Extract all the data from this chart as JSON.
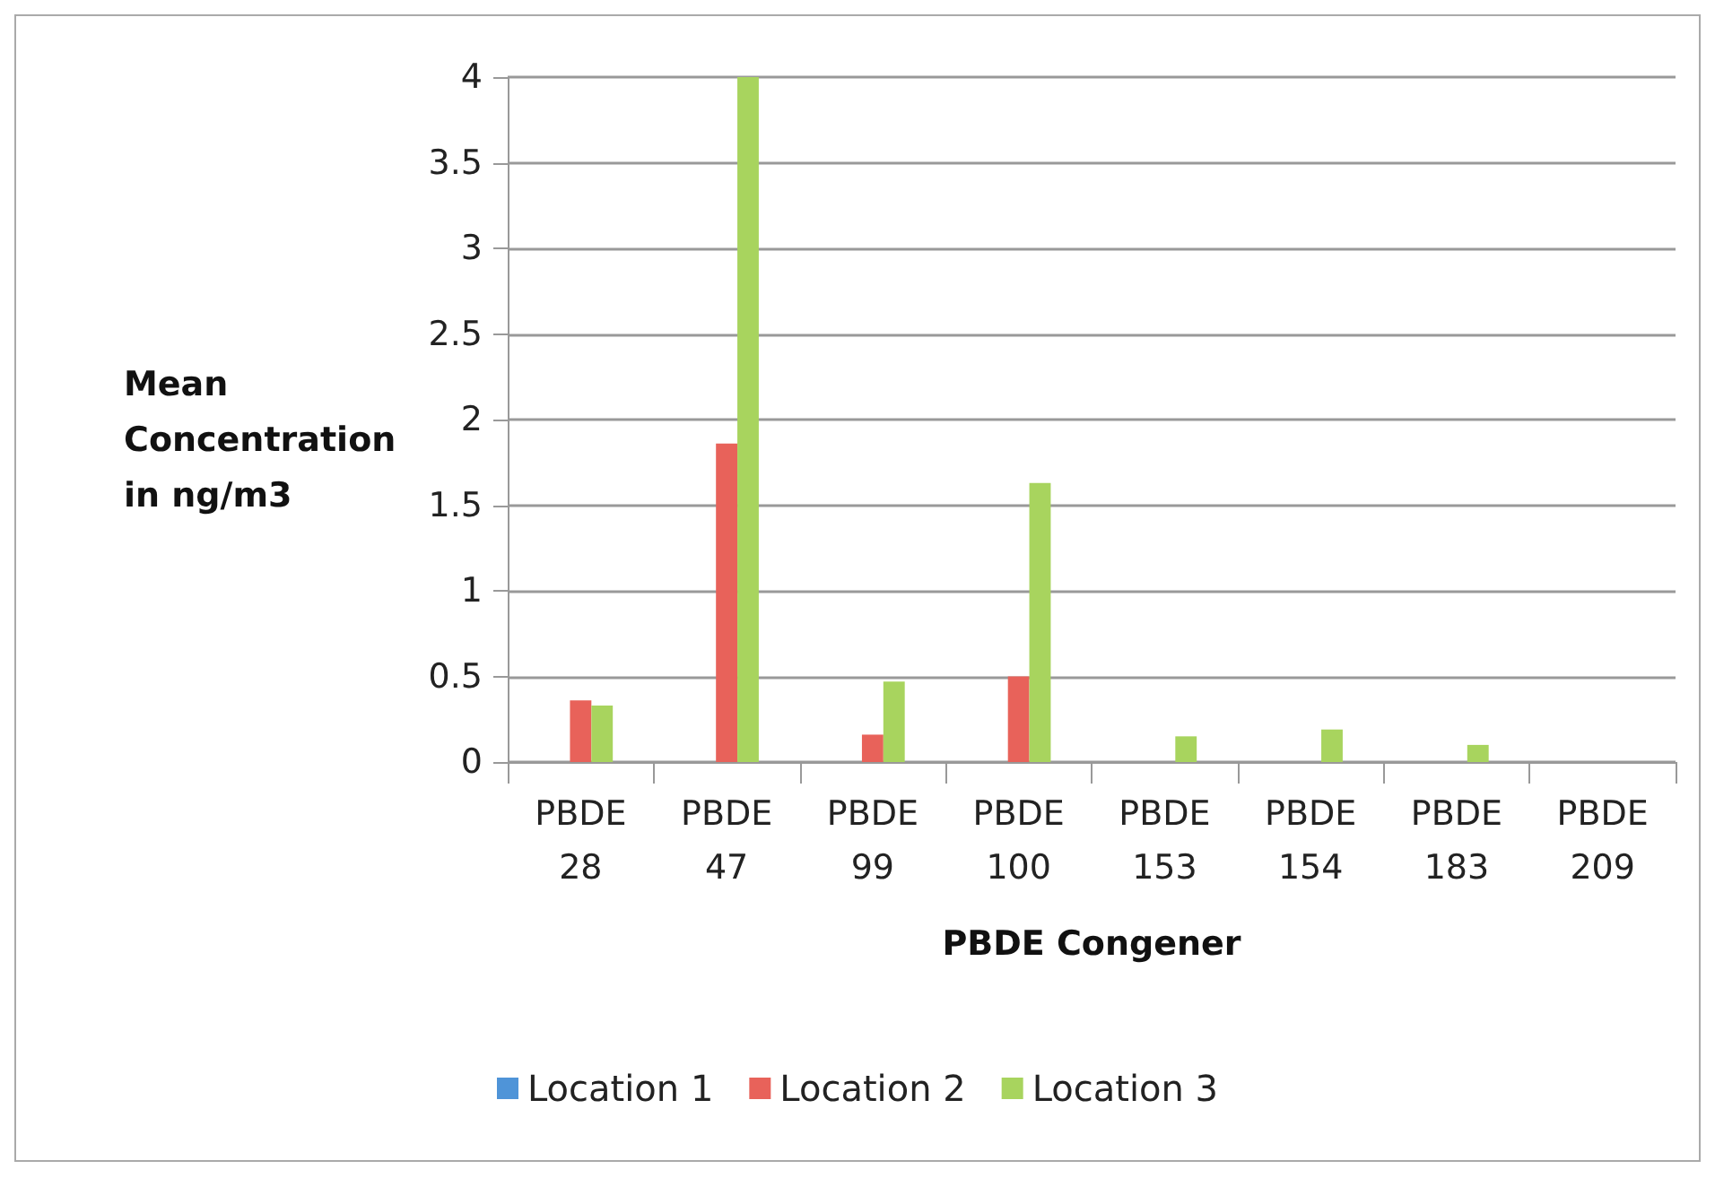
{
  "chart_data": {
    "type": "bar",
    "xlabel": "PBDE Congener",
    "ylabel": "Mean\nConcentration\nin ng/m3",
    "categories": [
      "PBDE\n28",
      "PBDE\n47",
      "PBDE\n99",
      "PBDE\n100",
      "PBDE\n153",
      "PBDE\n154",
      "PBDE\n183",
      "PBDE\n209"
    ],
    "series": [
      {
        "name": "Location 1",
        "color": "#4f94d8",
        "values": [
          0,
          0,
          0,
          0,
          0,
          0,
          0,
          0
        ]
      },
      {
        "name": "Location 2",
        "color": "#e8625a",
        "values": [
          0.36,
          1.86,
          0.16,
          0.5,
          0,
          0,
          0,
          0
        ]
      },
      {
        "name": "Location 3",
        "color": "#a8d45e",
        "values": [
          0.33,
          4,
          0.47,
          1.63,
          0.15,
          0.19,
          0.1,
          0
        ]
      }
    ],
    "ylim": [
      0,
      4
    ],
    "yticks": [
      0,
      0.5,
      1,
      1.5,
      2,
      2.5,
      3,
      3.5,
      4
    ],
    "grid": "y",
    "legend": "bottom"
  }
}
